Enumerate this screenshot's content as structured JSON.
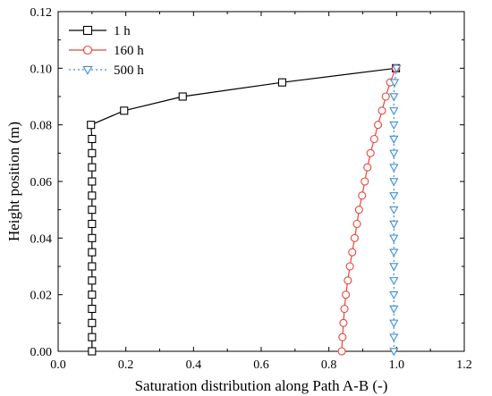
{
  "chart_data": {
    "type": "line",
    "xlabel": "Saturation distribution along Path A-B (-)",
    "ylabel": "Height position (m)",
    "xlim": [
      0.0,
      1.2
    ],
    "ylim": [
      0.0,
      0.12
    ],
    "xticks": [
      "0.0",
      "0.2",
      "0.4",
      "0.6",
      "0.8",
      "1.0",
      "1.2"
    ],
    "yticks": [
      "0.00",
      "0.02",
      "0.04",
      "0.06",
      "0.08",
      "0.10",
      "0.12"
    ],
    "grid": false,
    "legend_position": "top-left",
    "series": [
      {
        "name": "1 h",
        "color": "#000000",
        "marker": "square",
        "line_style": "solid",
        "points": [
          [
            0.1,
            0.0
          ],
          [
            0.1,
            0.005
          ],
          [
            0.1,
            0.01
          ],
          [
            0.1,
            0.015
          ],
          [
            0.1,
            0.02
          ],
          [
            0.1,
            0.025
          ],
          [
            0.1,
            0.03
          ],
          [
            0.1,
            0.035
          ],
          [
            0.1,
            0.04
          ],
          [
            0.1,
            0.045
          ],
          [
            0.1,
            0.05
          ],
          [
            0.1,
            0.055
          ],
          [
            0.1,
            0.06
          ],
          [
            0.1,
            0.065
          ],
          [
            0.1,
            0.07
          ],
          [
            0.1,
            0.075
          ],
          [
            0.097,
            0.08
          ],
          [
            0.195,
            0.085
          ],
          [
            0.368,
            0.09
          ],
          [
            0.662,
            0.095
          ],
          [
            0.998,
            0.1
          ]
        ]
      },
      {
        "name": "160 h",
        "color": "#e8453c",
        "marker": "circle",
        "line_style": "solid",
        "points": [
          [
            0.838,
            0.0
          ],
          [
            0.84,
            0.005
          ],
          [
            0.843,
            0.01
          ],
          [
            0.846,
            0.015
          ],
          [
            0.85,
            0.02
          ],
          [
            0.856,
            0.025
          ],
          [
            0.862,
            0.03
          ],
          [
            0.869,
            0.035
          ],
          [
            0.876,
            0.04
          ],
          [
            0.883,
            0.045
          ],
          [
            0.889,
            0.05
          ],
          [
            0.898,
            0.055
          ],
          [
            0.906,
            0.06
          ],
          [
            0.914,
            0.065
          ],
          [
            0.923,
            0.07
          ],
          [
            0.934,
            0.075
          ],
          [
            0.945,
            0.08
          ],
          [
            0.957,
            0.085
          ],
          [
            0.968,
            0.09
          ],
          [
            0.981,
            0.095
          ],
          [
            0.998,
            0.1
          ]
        ]
      },
      {
        "name": "500 h",
        "color": "#3d8fd1",
        "marker": "triangle-down",
        "line_style": "dotted",
        "points": [
          [
            0.992,
            0.0
          ],
          [
            0.992,
            0.005
          ],
          [
            0.992,
            0.01
          ],
          [
            0.992,
            0.015
          ],
          [
            0.992,
            0.02
          ],
          [
            0.992,
            0.025
          ],
          [
            0.992,
            0.03
          ],
          [
            0.992,
            0.035
          ],
          [
            0.992,
            0.04
          ],
          [
            0.992,
            0.045
          ],
          [
            0.992,
            0.05
          ],
          [
            0.992,
            0.055
          ],
          [
            0.992,
            0.06
          ],
          [
            0.992,
            0.065
          ],
          [
            0.992,
            0.07
          ],
          [
            0.992,
            0.075
          ],
          [
            0.992,
            0.08
          ],
          [
            0.992,
            0.085
          ],
          [
            0.992,
            0.09
          ],
          [
            0.994,
            0.095
          ],
          [
            1.0,
            0.1
          ]
        ]
      }
    ]
  }
}
